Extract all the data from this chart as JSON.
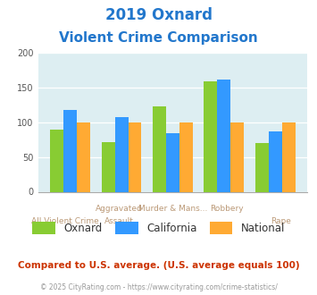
{
  "title_line1": "2019 Oxnard",
  "title_line2": "Violent Crime Comparison",
  "oxnard": [
    90,
    72,
    123,
    159,
    70
  ],
  "california": [
    118,
    108,
    85,
    162,
    87
  ],
  "national": [
    100,
    100,
    100,
    100,
    100
  ],
  "colors": {
    "oxnard": "#88cc33",
    "california": "#3399ff",
    "national": "#ffaa33"
  },
  "ylim": [
    0,
    200
  ],
  "yticks": [
    0,
    50,
    100,
    150,
    200
  ],
  "background_color": "#ddeef2",
  "title_color": "#2277cc",
  "xlabel_color": "#bb9977",
  "footer_text": "Compared to U.S. average. (U.S. average equals 100)",
  "credit_text": "© 2025 CityRating.com - https://www.cityrating.com/crime-statistics/",
  "footer_color": "#cc3300",
  "credit_color": "#999999",
  "x_top_labels": [
    "",
    "Aggravated",
    "Assault",
    "Murder & Mans...",
    "Robbery",
    ""
  ],
  "x_labels_row1": [
    "",
    "Aggravated",
    "Murder & Mans...",
    "Robbery",
    ""
  ],
  "x_labels_row2": [
    "All Violent Crime",
    "Assault",
    "",
    "",
    "Rape"
  ]
}
